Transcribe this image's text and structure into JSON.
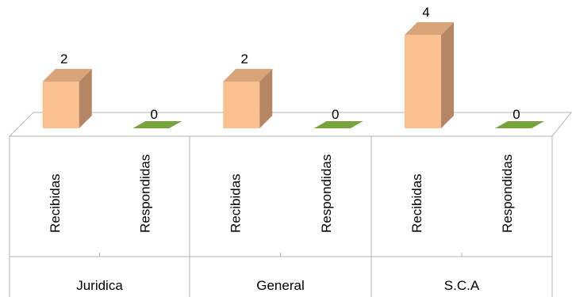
{
  "chart_data": {
    "type": "bar",
    "style": "3d-column",
    "title": "",
    "xlabel": "",
    "ylabel": "",
    "ylim": [
      0,
      4
    ],
    "grid": false,
    "legend": "none",
    "groups": [
      "Juridica",
      "General",
      "S.C.A"
    ],
    "series": [
      {
        "name": "Recibidas",
        "values": [
          2,
          2,
          4
        ],
        "color": "#FAC090",
        "side_color": "#B48664",
        "top_color": "#D8A47A"
      },
      {
        "name": "Respondidas",
        "values": [
          0,
          0,
          0
        ],
        "color": "#77A33C",
        "side_color": "#5A7E2C",
        "top_color": "#77A33C"
      }
    ]
  }
}
